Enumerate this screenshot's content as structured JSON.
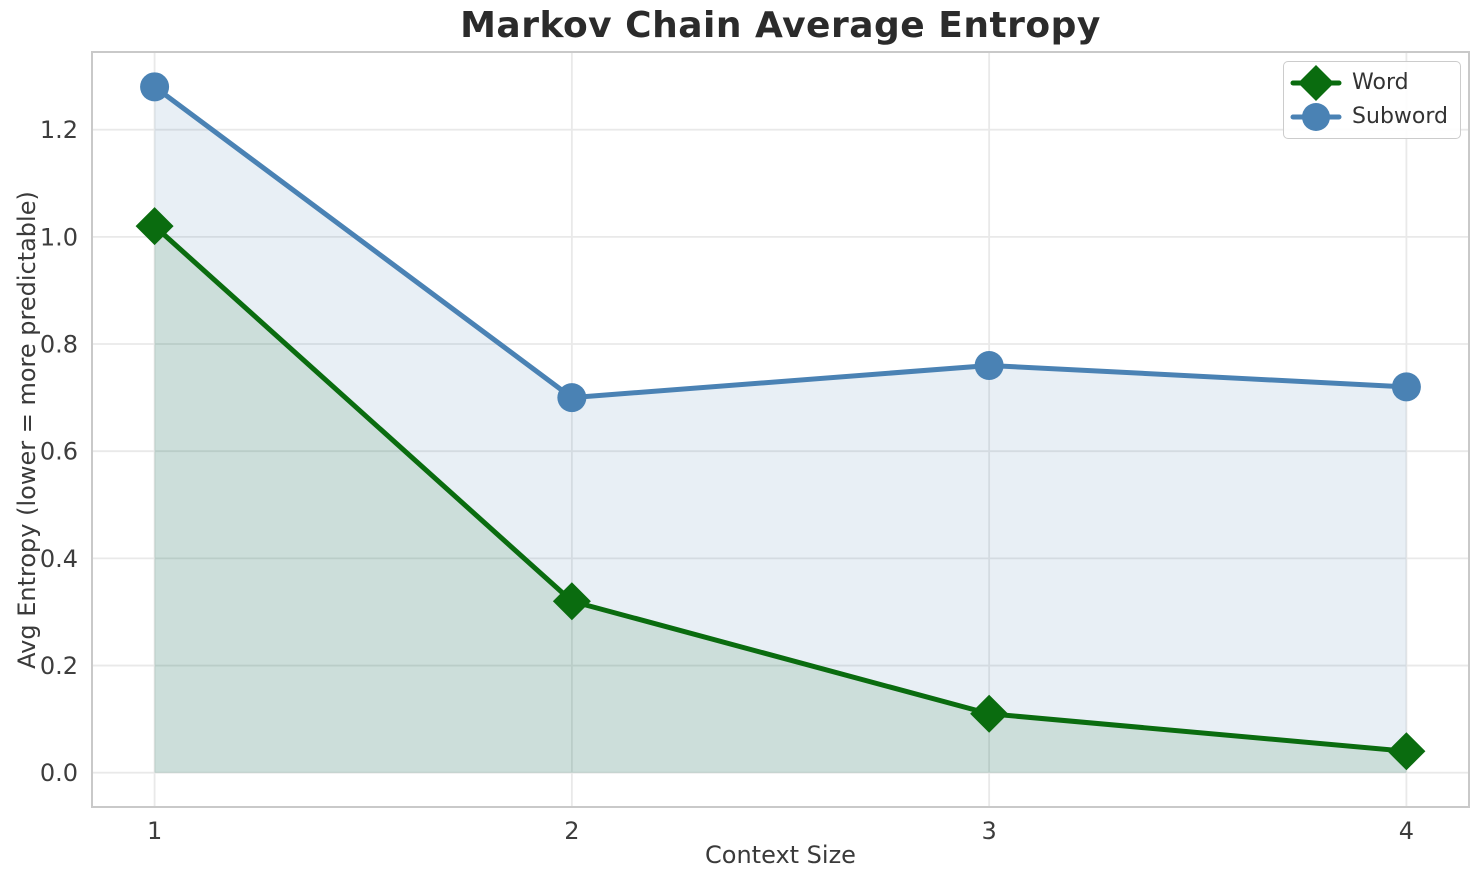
{
  "chart_data": {
    "type": "line",
    "title": "Markov Chain Average Entropy",
    "xlabel": "Context Size",
    "ylabel": "Avg Entropy (lower = more predictable)",
    "x": [
      1,
      2,
      3,
      4
    ],
    "xtick_labels": [
      "1",
      "2",
      "3",
      "4"
    ],
    "yticks": [
      0.0,
      0.2,
      0.4,
      0.6,
      0.8,
      1.0,
      1.2
    ],
    "ytick_labels": [
      "0.0",
      "0.2",
      "0.4",
      "0.6",
      "0.8",
      "1.0",
      "1.2"
    ],
    "xlim": [
      0.85,
      4.15
    ],
    "ylim": [
      -0.064,
      1.345
    ],
    "grid": true,
    "legend_position": "upper right",
    "fill_baseline": 0,
    "fill_opacity": 0.13,
    "series": [
      {
        "name": "Word",
        "color": "#0a6c0f",
        "marker": "diamond",
        "values": [
          1.02,
          0.32,
          0.11,
          0.04
        ]
      },
      {
        "name": "Subword",
        "color": "#4a82b4",
        "marker": "circle",
        "values": [
          1.28,
          0.7,
          0.76,
          0.72
        ]
      }
    ]
  },
  "colors": {
    "background": "#ffffff",
    "grid": "#e9e9e9",
    "spine": "#c9c9c9",
    "tick_text": "#3d3d3d",
    "title_text": "#2b2b2b",
    "legend_border": "#cccccc"
  }
}
